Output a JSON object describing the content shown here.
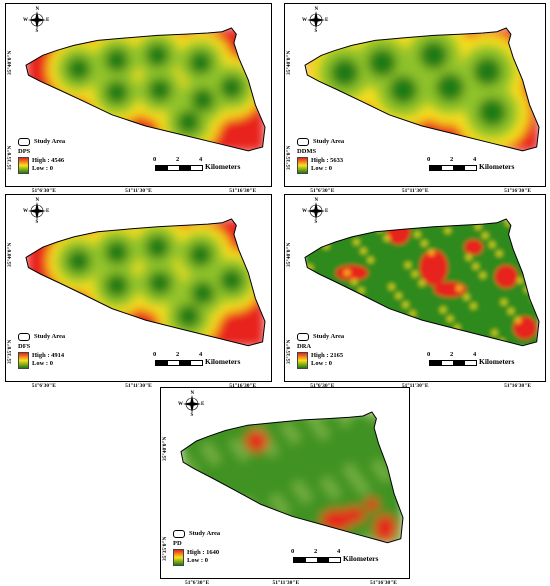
{
  "maps": [
    {
      "id": "dps",
      "title": "DPS",
      "high": "High : 4546",
      "low": "Low : 0"
    },
    {
      "id": "ddms",
      "title": "DDMS",
      "high": "High : 5633",
      "low": "Low : 0"
    },
    {
      "id": "dfs",
      "title": "DFS",
      "high": "High : 4914",
      "low": "Low : 0"
    },
    {
      "id": "dra",
      "title": "DRA",
      "high": "High : 2165",
      "low": "Low : 0"
    },
    {
      "id": "pd",
      "title": "PD",
      "high": "High : 1640",
      "low": "Low : 0"
    }
  ],
  "legend": {
    "study_area": "Study Area"
  },
  "scale": {
    "ticks": [
      "0",
      "2",
      "4"
    ],
    "unit": "Kilometers"
  },
  "coords": {
    "lon1": "51°6'30\"E",
    "lon2": "51°11'30\"E",
    "lon3": "51°16'30\"E",
    "lat1": "35°40'0\"N",
    "lat2": "35°35'0\"N"
  },
  "compass": {
    "n": "N",
    "s": "S",
    "e": "E",
    "w": "W"
  },
  "colors": {
    "high": "#e8231c",
    "mid": "#f8e21c",
    "low": "#1f7a14"
  }
}
